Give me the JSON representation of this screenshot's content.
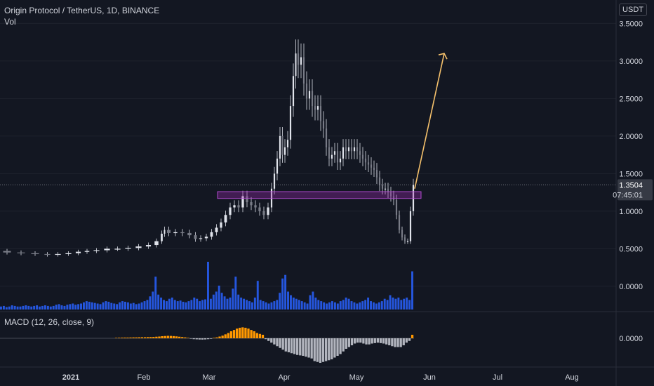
{
  "header": {
    "title": "Origin Protocol / TetherUS, 1D, BINANCE",
    "volume_label": "Vol",
    "macd_label": "MACD (12, 26, close, 9)",
    "currency_badge": "USDT"
  },
  "price_tag": {
    "price": "1.3504",
    "countdown": "07:45:01"
  },
  "colors": {
    "background": "#131722",
    "candle": "#b2b5be",
    "volume": "#2962ff",
    "macd_positive": "#ff9800",
    "macd_negative": "#b2b5be",
    "zone": "#9c27b0",
    "arrow": "#f5c16c",
    "axis_text": "#d1d4dc"
  },
  "chart_data": {
    "type": "candlestick",
    "price_axis_ticks": [
      "3.5000",
      "3.0000",
      "2.5000",
      "2.0000",
      "1.5000",
      "1.0000",
      "0.5000",
      "0.0000"
    ],
    "macd_axis_ticks": [
      "0.0000"
    ],
    "time_axis_ticks": [
      "2021",
      "Feb",
      "Mar",
      "Apr",
      "May",
      "Jun",
      "Jul",
      "Aug"
    ],
    "price_range": [
      -0.3,
      3.7
    ],
    "last_price": 1.3504,
    "resistance_zone": {
      "from": 1.17,
      "to": 1.26
    },
    "projection": {
      "from_price": 1.3,
      "to_price": 3.1
    },
    "price_path": [
      [
        0,
        0.47
      ],
      [
        20,
        0.45
      ],
      [
        40,
        0.44
      ],
      [
        60,
        0.43
      ],
      [
        75,
        0.42
      ],
      [
        90,
        0.43
      ],
      [
        105,
        0.44
      ],
      [
        118,
        0.46
      ],
      [
        130,
        0.47
      ],
      [
        145,
        0.48
      ],
      [
        160,
        0.5
      ],
      [
        175,
        0.5
      ],
      [
        190,
        0.51
      ],
      [
        205,
        0.53
      ],
      [
        218,
        0.55
      ],
      [
        228,
        0.6
      ],
      [
        233,
        0.7
      ],
      [
        236,
        0.75
      ],
      [
        245,
        0.71
      ],
      [
        255,
        0.72
      ],
      [
        265,
        0.71
      ],
      [
        275,
        0.68
      ],
      [
        282,
        0.63
      ],
      [
        290,
        0.64
      ],
      [
        298,
        0.66
      ],
      [
        305,
        0.72
      ],
      [
        312,
        0.78
      ],
      [
        318,
        0.85
      ],
      [
        325,
        0.95
      ],
      [
        331,
        1.05
      ],
      [
        337,
        1.08
      ],
      [
        343,
        1.05
      ],
      [
        349,
        1.2
      ],
      [
        355,
        1.12
      ],
      [
        361,
        1.08
      ],
      [
        367,
        1.05
      ],
      [
        373,
        1.0
      ],
      [
        379,
        0.95
      ],
      [
        385,
        1.05
      ],
      [
        389,
        1.3
      ],
      [
        393,
        1.5
      ],
      [
        397,
        1.7
      ],
      [
        401,
        2.0
      ],
      [
        404,
        1.75
      ],
      [
        408,
        1.85
      ],
      [
        412,
        1.95
      ],
      [
        416,
        2.4
      ],
      [
        420,
        2.8
      ],
      [
        423,
        3.1
      ],
      [
        427,
        2.95
      ],
      [
        431,
        3.05
      ],
      [
        435,
        2.7
      ],
      [
        439,
        2.5
      ],
      [
        443,
        2.6
      ],
      [
        447,
        2.4
      ],
      [
        451,
        2.35
      ],
      [
        455,
        2.4
      ],
      [
        459,
        2.2
      ],
      [
        463,
        2.1
      ],
      [
        467,
        1.85
      ],
      [
        471,
        1.7
      ],
      [
        475,
        1.75
      ],
      [
        479,
        1.8
      ],
      [
        483,
        1.65
      ],
      [
        487,
        1.7
      ],
      [
        491,
        1.85
      ],
      [
        495,
        1.8
      ],
      [
        499,
        1.85
      ],
      [
        503,
        1.8
      ],
      [
        507,
        1.85
      ],
      [
        511,
        1.8
      ],
      [
        515,
        1.75
      ],
      [
        519,
        1.7
      ],
      [
        523,
        1.65
      ],
      [
        527,
        1.62
      ],
      [
        531,
        1.58
      ],
      [
        535,
        1.55
      ],
      [
        539,
        1.45
      ],
      [
        543,
        1.35
      ],
      [
        547,
        1.3
      ],
      [
        551,
        1.3
      ],
      [
        555,
        1.25
      ],
      [
        559,
        1.2
      ],
      [
        563,
        1.15
      ],
      [
        567,
        0.95
      ],
      [
        571,
        0.75
      ],
      [
        575,
        0.65
      ],
      [
        579,
        0.6
      ],
      [
        583,
        0.6
      ],
      [
        587,
        1.0
      ],
      [
        591,
        1.35
      ]
    ],
    "volume_values": [
      5,
      6,
      4,
      5,
      7,
      6,
      5,
      5,
      6,
      7,
      6,
      5,
      6,
      7,
      5,
      6,
      7,
      6,
      5,
      6,
      8,
      9,
      7,
      6,
      8,
      9,
      10,
      8,
      9,
      10,
      12,
      14,
      13,
      12,
      11,
      10,
      9,
      12,
      14,
      13,
      11,
      10,
      9,
      12,
      14,
      13,
      12,
      10,
      11,
      9,
      10,
      12,
      14,
      16,
      22,
      30,
      55,
      25,
      20,
      16,
      14,
      18,
      20,
      16,
      14,
      15,
      13,
      12,
      14,
      16,
      20,
      18,
      14,
      16,
      17,
      80,
      18,
      25,
      30,
      40,
      28,
      22,
      18,
      20,
      35,
      55,
      25,
      20,
      18,
      16,
      14,
      12,
      20,
      48,
      16,
      14,
      12,
      10,
      12,
      14,
      16,
      28,
      52,
      58,
      30,
      24,
      20,
      18,
      16,
      14,
      12,
      10,
      24,
      30,
      20,
      16,
      14,
      12,
      10,
      12,
      14,
      12,
      10,
      14,
      16,
      20,
      18,
      14,
      12,
      10,
      12,
      14,
      16,
      20,
      14,
      12,
      10,
      12,
      14,
      18,
      16,
      24,
      20,
      18,
      20,
      16,
      18,
      20,
      16,
      64
    ],
    "volume_max": 80,
    "macd_values": [
      0,
      0,
      0,
      0,
      0,
      0,
      0,
      0,
      0,
      0,
      0,
      0,
      0,
      0,
      0,
      0,
      0,
      0,
      0,
      0,
      0,
      0,
      0,
      0,
      0,
      0,
      0,
      0,
      0,
      0,
      0,
      0,
      0,
      0,
      0,
      0,
      0,
      0,
      0,
      0,
      0.005,
      0.006,
      0.007,
      0.008,
      0.008,
      0.009,
      0.01,
      0.01,
      0.011,
      0.012,
      0.012,
      0.013,
      0.014,
      0.015,
      0.018,
      0.02,
      0.024,
      0.026,
      0.028,
      0.027,
      0.025,
      0.022,
      0.018,
      0.014,
      0.01,
      0.005,
      -0.005,
      -0.01,
      -0.012,
      -0.014,
      -0.015,
      -0.013,
      -0.01,
      -0.006,
      0.005,
      0.01,
      0.02,
      0.03,
      0.045,
      0.06,
      0.08,
      0.095,
      0.11,
      0.12,
      0.125,
      0.12,
      0.11,
      0.095,
      0.08,
      0.06,
      0.05,
      0.04,
      -0.01,
      -0.03,
      -0.05,
      -0.07,
      -0.09,
      -0.11,
      -0.13,
      -0.15,
      -0.16,
      -0.17,
      -0.18,
      -0.19,
      -0.195,
      -0.2,
      -0.21,
      -0.22,
      -0.23,
      -0.26,
      -0.27,
      -0.28,
      -0.27,
      -0.26,
      -0.25,
      -0.24,
      -0.22,
      -0.2,
      -0.18,
      -0.15,
      -0.12,
      -0.1,
      -0.08,
      -0.06,
      -0.05,
      -0.05,
      -0.06,
      -0.07,
      -0.07,
      -0.06,
      -0.055,
      -0.05,
      -0.055,
      -0.06,
      -0.07,
      -0.08,
      -0.09,
      -0.1,
      -0.1,
      -0.1,
      -0.08,
      -0.05,
      -0.03,
      0.04
    ]
  }
}
